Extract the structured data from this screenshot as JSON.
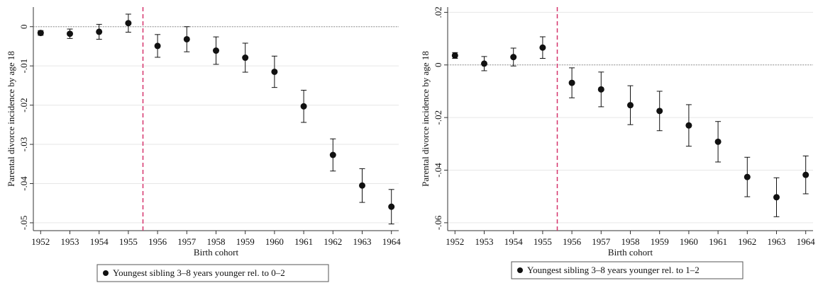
{
  "chart_data": [
    {
      "type": "errorbar",
      "ylabel": "Parental divorce incidence by age 18",
      "xlabel": "Birth cohort",
      "x": [
        1952,
        1953,
        1954,
        1955,
        1956,
        1957,
        1958,
        1959,
        1960,
        1961,
        1962,
        1963,
        1964
      ],
      "xlim": [
        1951.75,
        1964.25
      ],
      "xticks": [
        1952,
        1953,
        1954,
        1955,
        1956,
        1957,
        1958,
        1959,
        1960,
        1961,
        1962,
        1963,
        1964
      ],
      "ylim": [
        -0.052,
        0.005
      ],
      "yticks": [
        0,
        {
          "value": -0.01,
          "label": "-.01"
        },
        {
          "value": -0.02,
          "label": "-.02"
        },
        {
          "value": -0.03,
          "label": "-.03"
        },
        {
          "value": -0.04,
          "label": "-.04"
        },
        {
          "value": -0.05,
          "label": "-.05"
        }
      ],
      "grid": true,
      "hline": 0,
      "vline": 1955.5,
      "legend": "bottom",
      "series": [
        {
          "name": "Youngest sibling 3–8 years younger rel. to 0–2",
          "color": "#111111",
          "values": [
            -0.0016,
            -0.0018,
            -0.0013,
            0.0009,
            -0.0049,
            -0.0032,
            -0.0061,
            -0.0079,
            -0.0115,
            -0.0203,
            -0.0327,
            -0.0405,
            -0.0459
          ],
          "errors": [
            0.0006,
            0.0012,
            0.0019,
            0.0023,
            0.0029,
            0.0032,
            0.0035,
            0.0037,
            0.004,
            0.0041,
            0.0041,
            0.0043,
            0.0044
          ]
        }
      ]
    },
    {
      "type": "errorbar",
      "ylabel": "Parental divorce incidence by age 18",
      "xlabel": "Birth cohort",
      "x": [
        1952,
        1953,
        1954,
        1955,
        1956,
        1957,
        1958,
        1959,
        1960,
        1961,
        1962,
        1963,
        1964
      ],
      "xlim": [
        1951.75,
        1964.25
      ],
      "xticks": [
        1952,
        1953,
        1954,
        1955,
        1956,
        1957,
        1958,
        1959,
        1960,
        1961,
        1962,
        1963,
        1964
      ],
      "ylim": [
        -0.063,
        0.022
      ],
      "yticks": [
        {
          "value": 0.02,
          "label": ".02"
        },
        0,
        {
          "value": -0.02,
          "label": "-.02"
        },
        {
          "value": -0.04,
          "label": "-.04"
        },
        {
          "value": -0.06,
          "label": "-.06"
        }
      ],
      "grid": true,
      "hline": 0,
      "vline": 1955.5,
      "legend": "bottom",
      "series": [
        {
          "name": "Youngest sibling 3–8 years younger rel. to 1–2",
          "color": "#111111",
          "values": [
            0.0036,
            0.0005,
            0.003,
            0.0066,
            -0.0068,
            -0.0093,
            -0.0153,
            -0.0175,
            -0.023,
            -0.0292,
            -0.0426,
            -0.0503,
            -0.0418
          ],
          "errors": [
            0.0011,
            0.0027,
            0.0034,
            0.0041,
            0.0057,
            0.0066,
            0.0074,
            0.0075,
            0.0079,
            0.0077,
            0.0075,
            0.0074,
            0.0072
          ]
        }
      ]
    }
  ]
}
